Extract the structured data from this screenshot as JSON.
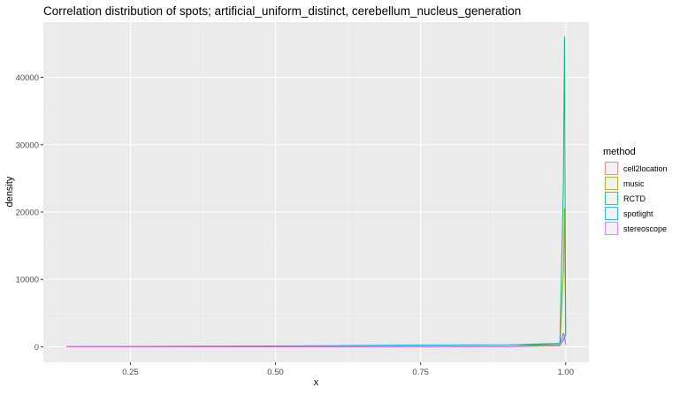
{
  "chart_data": {
    "type": "line",
    "title": "Correlation distribution of spots; artificial_uniform_distinct, cerebellum_nucleus_generation",
    "xlabel": "x",
    "ylabel": "density",
    "xlim": [
      0.1,
      1.04
    ],
    "ylim": [
      -2300,
      48200
    ],
    "x_ticks": [
      0.25,
      0.5,
      0.75,
      1.0
    ],
    "x_tick_labels": [
      "0.25",
      "0.50",
      "0.75",
      "1.00"
    ],
    "y_ticks": [
      0,
      10000,
      20000,
      30000,
      40000
    ],
    "y_tick_labels": [
      "0",
      "10000",
      "20000",
      "30000",
      "40000"
    ],
    "grid": true,
    "legend_position": "right",
    "legend_title": "method",
    "series": [
      {
        "name": "cell2location",
        "color": "#F8766D",
        "x": [
          0.14,
          0.6,
          0.9,
          0.99,
          0.996,
          0.998,
          0.999,
          1.0
        ],
        "y": [
          5,
          10,
          30,
          150,
          900,
          1500,
          900,
          300
        ]
      },
      {
        "name": "music",
        "color": "#A3A500",
        "x": [
          0.14,
          0.6,
          0.9,
          0.99,
          0.996,
          0.998,
          0.999,
          1.0
        ],
        "y": [
          5,
          10,
          40,
          300,
          11000,
          20500,
          11000,
          2000
        ]
      },
      {
        "name": "RCTD",
        "color": "#00BF7D",
        "x": [
          0.14,
          0.6,
          0.9,
          0.99,
          0.996,
          0.998,
          0.999,
          1.0
        ],
        "y": [
          5,
          10,
          50,
          500,
          24000,
          46000,
          24000,
          1500
        ]
      },
      {
        "name": "spotlight",
        "color": "#00B0F6",
        "x": [
          0.14,
          0.35,
          0.55,
          0.72,
          0.9,
          0.99,
          0.996,
          0.998,
          1.0
        ],
        "y": [
          5,
          100,
          150,
          250,
          300,
          500,
          2000,
          1500,
          300
        ]
      },
      {
        "name": "stereoscope",
        "color": "#E76BF3",
        "x": [
          0.14,
          0.6,
          0.9,
          0.99,
          0.996,
          0.998,
          0.999,
          1.0
        ],
        "y": [
          5,
          10,
          30,
          200,
          1200,
          1800,
          1200,
          300
        ]
      }
    ]
  }
}
